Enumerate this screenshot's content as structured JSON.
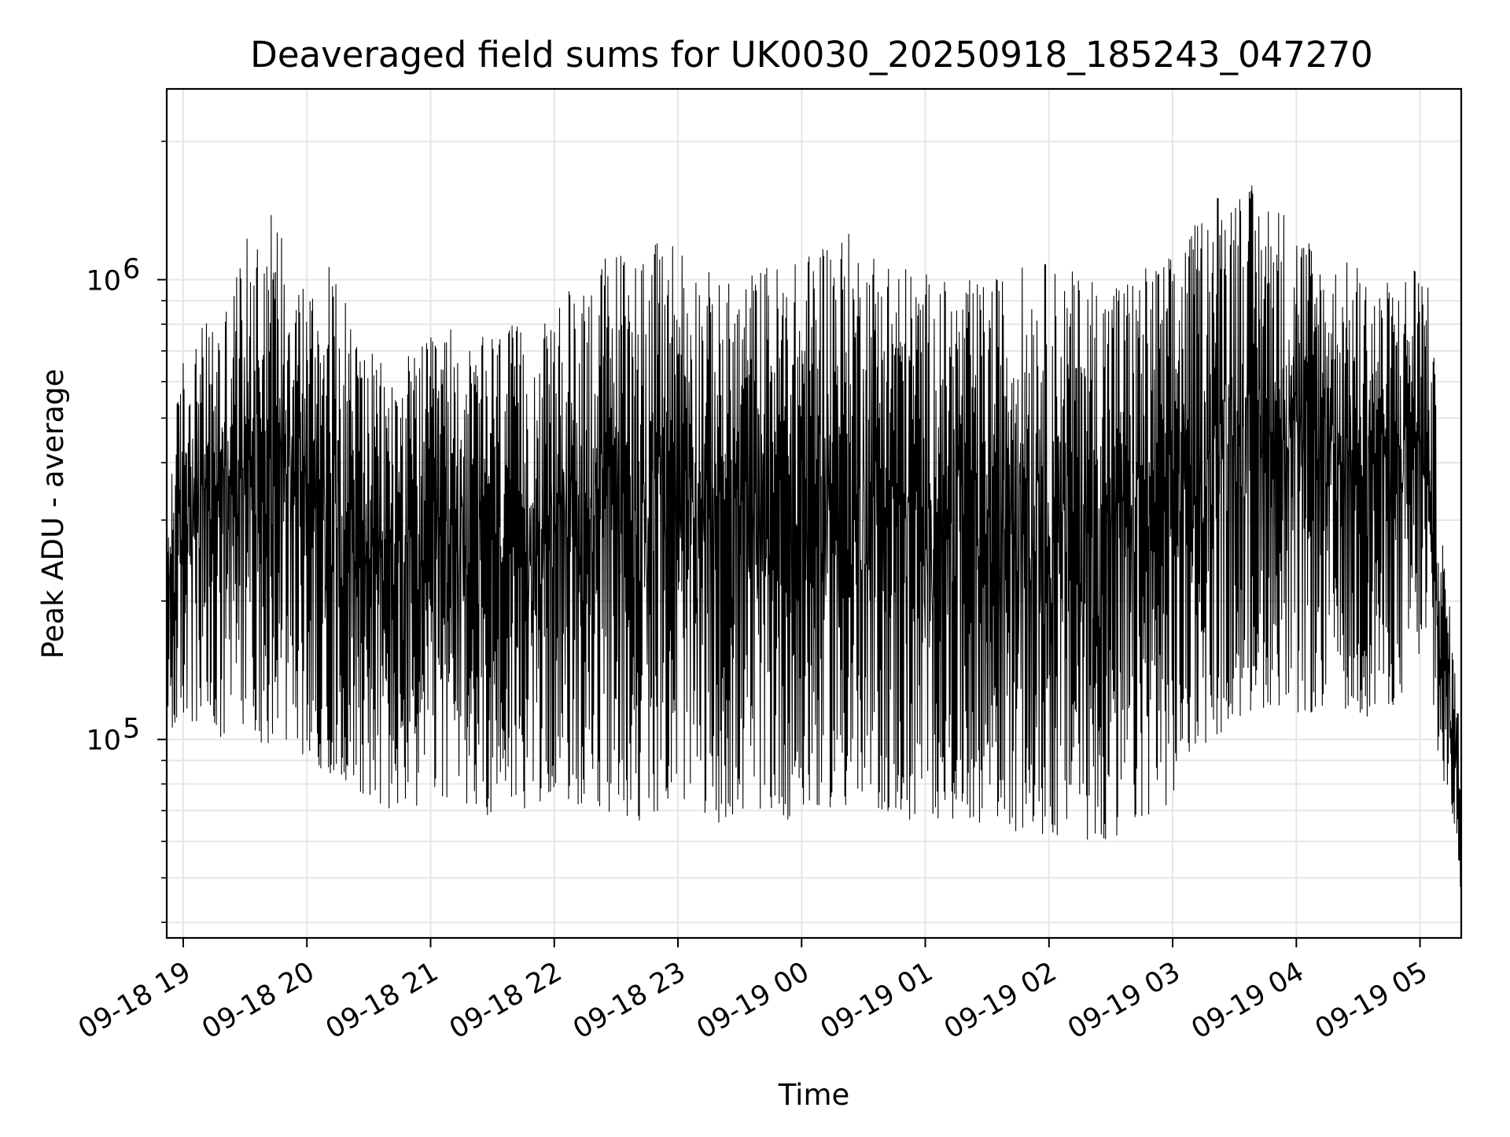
{
  "chart_data": {
    "type": "line",
    "title": "Deaveraged field sums for UK0030_20250918_185243_047270",
    "xlabel": "Time",
    "ylabel": "Peak ADU - average",
    "yscale": "log",
    "ylim": [
      37000,
      2600000
    ],
    "xlim": [
      "2025-09-18 18:52",
      "2025-09-19 05:20"
    ],
    "grid": true,
    "line_color": "#000000",
    "grid_color": "#e6e6e6",
    "x_ticks": [
      "09-18 19",
      "09-18 20",
      "09-18 21",
      "09-18 22",
      "09-18 23",
      "09-19 00",
      "09-19 01",
      "09-19 02",
      "09-19 03",
      "09-19 04",
      "09-19 05"
    ],
    "y_ticks": [
      {
        "value": 100000,
        "base": "10",
        "exp": "5"
      },
      {
        "value": 1000000,
        "base": "10",
        "exp": "6"
      }
    ],
    "series": [
      {
        "x": [
          "2025-09-18 18:52",
          "2025-09-18 19:00",
          "2025-09-18 19:10",
          "2025-09-18 19:20",
          "2025-09-18 19:30",
          "2025-09-18 19:40",
          "2025-09-18 19:50",
          "2025-09-18 20:00",
          "2025-09-18 20:10",
          "2025-09-18 20:20",
          "2025-09-18 20:30",
          "2025-09-18 20:40",
          "2025-09-18 20:50",
          "2025-09-18 21:00",
          "2025-09-18 21:10",
          "2025-09-18 21:20",
          "2025-09-18 21:30",
          "2025-09-18 21:40",
          "2025-09-18 21:50",
          "2025-09-18 22:00",
          "2025-09-18 22:10",
          "2025-09-18 22:20",
          "2025-09-18 22:30",
          "2025-09-18 22:40",
          "2025-09-18 22:50",
          "2025-09-18 23:00",
          "2025-09-18 23:10",
          "2025-09-18 23:20",
          "2025-09-18 23:30",
          "2025-09-18 23:40",
          "2025-09-18 23:50",
          "2025-09-19 00:00",
          "2025-09-19 00:10",
          "2025-09-19 00:20",
          "2025-09-19 00:30",
          "2025-09-19 00:40",
          "2025-09-19 00:50",
          "2025-09-19 01:00",
          "2025-09-19 01:10",
          "2025-09-19 01:20",
          "2025-09-19 01:30",
          "2025-09-19 01:40",
          "2025-09-19 01:50",
          "2025-09-19 02:00",
          "2025-09-19 02:10",
          "2025-09-19 02:20",
          "2025-09-19 02:30",
          "2025-09-19 02:40",
          "2025-09-19 02:50",
          "2025-09-19 03:00",
          "2025-09-19 03:10",
          "2025-09-19 03:20",
          "2025-09-19 03:30",
          "2025-09-19 03:40",
          "2025-09-19 03:50",
          "2025-09-19 04:00",
          "2025-09-19 04:10",
          "2025-09-19 04:20",
          "2025-09-19 04:30",
          "2025-09-19 04:40",
          "2025-09-19 04:50",
          "2025-09-19 05:00",
          "2025-09-19 05:05",
          "2025-09-19 05:10",
          "2025-09-19 05:15",
          "2025-09-19 05:20"
        ],
        "low": [
          95000,
          110000,
          100000,
          90000,
          110000,
          95000,
          100000,
          90000,
          85000,
          80000,
          75000,
          68000,
          70000,
          72000,
          75000,
          70000,
          68000,
          72000,
          70000,
          78000,
          72000,
          70000,
          68000,
          66000,
          70000,
          75000,
          70000,
          66000,
          68000,
          70000,
          68000,
          65000,
          72000,
          70000,
          68000,
          70000,
          66000,
          65000,
          68000,
          66000,
          66000,
          64000,
          62000,
          60000,
          62000,
          60000,
          58000,
          62000,
          70000,
          72000,
          95000,
          100000,
          110000,
          115000,
          120000,
          110000,
          115000,
          120000,
          110000,
          115000,
          120000,
          150000,
          120000,
          80000,
          72000,
          45000
        ],
        "high": [
          300000,
          700000,
          800000,
          900000,
          1200000,
          1500000,
          1300000,
          1000000,
          1100000,
          900000,
          700000,
          650000,
          700000,
          750000,
          800000,
          700000,
          800000,
          800000,
          750000,
          850000,
          1000000,
          1100000,
          1200000,
          1200000,
          1200000,
          1300000,
          1100000,
          1000000,
          1000000,
          1100000,
          1100000,
          1100000,
          1300000,
          1300000,
          1200000,
          1200000,
          1100000,
          1050000,
          1000000,
          1000000,
          1000000,
          1050000,
          1100000,
          1100000,
          1050000,
          1050000,
          1050000,
          1050000,
          1100000,
          1150000,
          1300000,
          1600000,
          1700000,
          1600000,
          1500000,
          1400000,
          1200000,
          1100000,
          1100000,
          1000000,
          1000000,
          1200000,
          900000,
          300000,
          180000,
          90000
        ]
      }
    ]
  }
}
